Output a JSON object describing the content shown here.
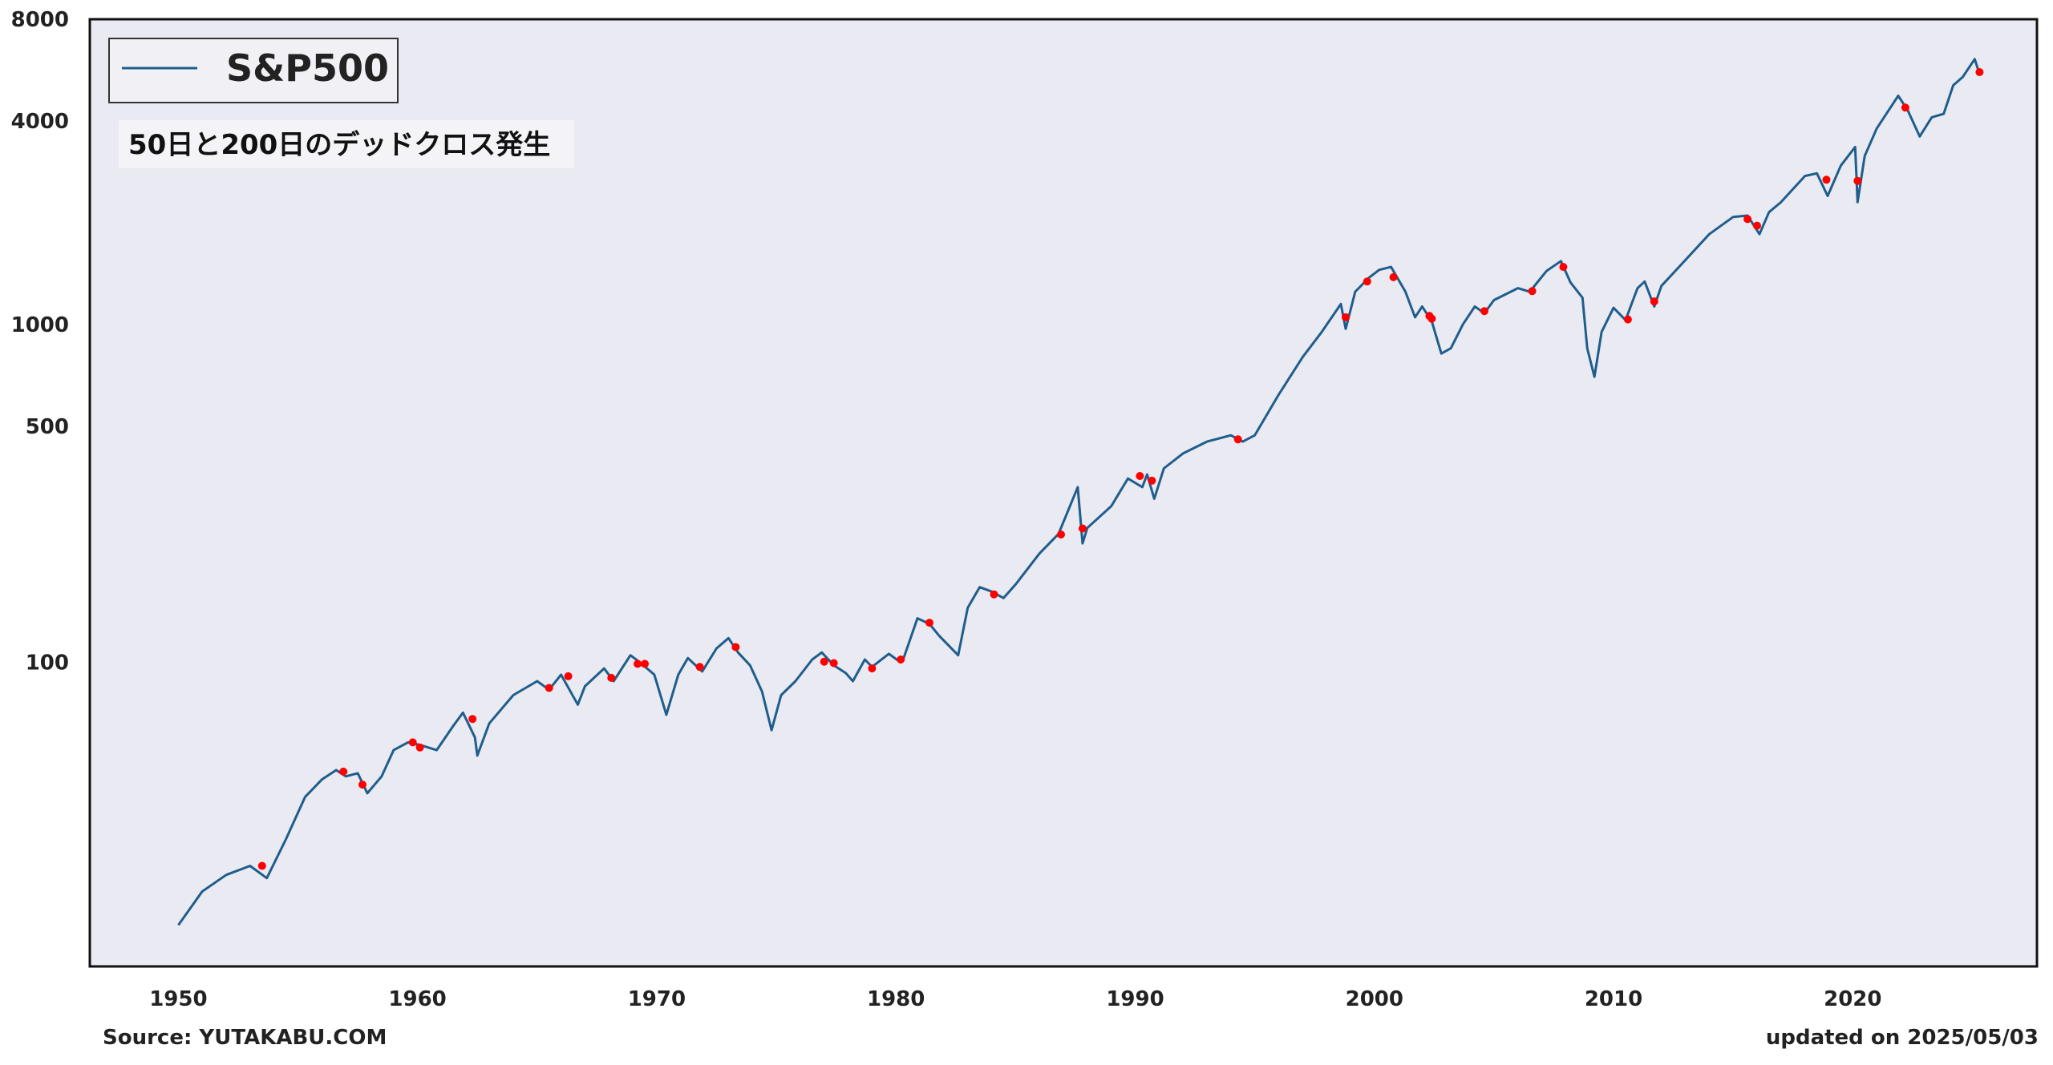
{
  "colors": {
    "plot_background": "#eaeaf2",
    "line": "#1f5e8c",
    "dead_cross_marker": "#ff0000",
    "frame": "#111111"
  },
  "footer": {
    "source": "Source: YUTAKABU.COM",
    "updated": "updated on 2025/05/03"
  },
  "chart_data": {
    "type": "line",
    "title": "",
    "xlabel": "",
    "ylabel": "",
    "y_scale": "log",
    "xlim": [
      1946.3,
      2027.7
    ],
    "ylim": [
      12.6,
      8000
    ],
    "grid": false,
    "legend_position": "top-left",
    "x_ticks": [
      1950,
      1960,
      1970,
      1980,
      1990,
      2000,
      2010,
      2020
    ],
    "y_ticks": [
      100,
      500,
      1000,
      4000,
      8000
    ],
    "annotation": "50日と200日のデッドクロス発生",
    "series": [
      {
        "name": "S&P500",
        "style": "line",
        "points": [
          [
            1950.0,
            16.7
          ],
          [
            1951.0,
            21.0
          ],
          [
            1952.0,
            23.5
          ],
          [
            1953.0,
            25.0
          ],
          [
            1953.7,
            23.0
          ],
          [
            1954.5,
            30.0
          ],
          [
            1955.3,
            40.0
          ],
          [
            1956.0,
            45.0
          ],
          [
            1956.6,
            48.0
          ],
          [
            1957.0,
            46.0
          ],
          [
            1957.5,
            47.0
          ],
          [
            1957.9,
            41.0
          ],
          [
            1958.5,
            46.0
          ],
          [
            1959.0,
            55.0
          ],
          [
            1959.6,
            58.0
          ],
          [
            1960.1,
            57.0
          ],
          [
            1960.8,
            55.0
          ],
          [
            1961.5,
            65.0
          ],
          [
            1961.9,
            71.0
          ],
          [
            1962.4,
            60.0
          ],
          [
            1962.5,
            53.0
          ],
          [
            1963.0,
            66.0
          ],
          [
            1964.0,
            80.0
          ],
          [
            1965.0,
            88.0
          ],
          [
            1965.5,
            83.0
          ],
          [
            1966.0,
            92.0
          ],
          [
            1966.7,
            75.0
          ],
          [
            1967.0,
            85.0
          ],
          [
            1967.8,
            96.0
          ],
          [
            1968.2,
            88.0
          ],
          [
            1968.9,
            105.0
          ],
          [
            1969.3,
            100.0
          ],
          [
            1969.9,
            92.0
          ],
          [
            1970.4,
            70.0
          ],
          [
            1970.9,
            92.0
          ],
          [
            1971.3,
            103.0
          ],
          [
            1971.9,
            94.0
          ],
          [
            1972.5,
            110.0
          ],
          [
            1973.0,
            118.0
          ],
          [
            1973.4,
            107.0
          ],
          [
            1973.9,
            98.0
          ],
          [
            1974.4,
            82.0
          ],
          [
            1974.8,
            63.0
          ],
          [
            1975.2,
            80.0
          ],
          [
            1975.8,
            88.0
          ],
          [
            1976.5,
            102.0
          ],
          [
            1976.9,
            107.0
          ],
          [
            1977.4,
            98.0
          ],
          [
            1977.9,
            93.0
          ],
          [
            1978.2,
            88.0
          ],
          [
            1978.7,
            102.0
          ],
          [
            1979.0,
            97.0
          ],
          [
            1979.7,
            106.0
          ],
          [
            1980.2,
            100.0
          ],
          [
            1980.3,
            102.0
          ],
          [
            1980.9,
            135.0
          ],
          [
            1981.4,
            130.0
          ],
          [
            1981.8,
            120.0
          ],
          [
            1982.6,
            105.0
          ],
          [
            1983.0,
            145.0
          ],
          [
            1983.5,
            167.0
          ],
          [
            1984.0,
            162.0
          ],
          [
            1984.5,
            155.0
          ],
          [
            1985.0,
            170.0
          ],
          [
            1986.0,
            210.0
          ],
          [
            1986.8,
            240.0
          ],
          [
            1987.6,
            330.0
          ],
          [
            1987.8,
            225.0
          ],
          [
            1988.0,
            250.0
          ],
          [
            1989.0,
            290.0
          ],
          [
            1989.7,
            350.0
          ],
          [
            1990.3,
            330.0
          ],
          [
            1990.5,
            360.0
          ],
          [
            1990.8,
            305.0
          ],
          [
            1991.2,
            375.0
          ],
          [
            1992.0,
            415.0
          ],
          [
            1993.0,
            450.0
          ],
          [
            1994.0,
            470.0
          ],
          [
            1994.5,
            450.0
          ],
          [
            1995.0,
            470.0
          ],
          [
            1996.0,
            620.0
          ],
          [
            1997.0,
            800.0
          ],
          [
            1997.8,
            950.0
          ],
          [
            1998.6,
            1150.0
          ],
          [
            1998.8,
            970.0
          ],
          [
            1999.2,
            1250.0
          ],
          [
            1999.8,
            1380.0
          ],
          [
            2000.2,
            1450.0
          ],
          [
            2000.7,
            1480.0
          ],
          [
            2001.3,
            1250.0
          ],
          [
            2001.7,
            1050.0
          ],
          [
            2002.0,
            1130.0
          ],
          [
            2002.4,
            1020.0
          ],
          [
            2002.8,
            820.0
          ],
          [
            2003.2,
            850.0
          ],
          [
            2003.7,
            1000.0
          ],
          [
            2004.2,
            1130.0
          ],
          [
            2004.6,
            1080.0
          ],
          [
            2005.0,
            1180.0
          ],
          [
            2006.0,
            1280.0
          ],
          [
            2006.5,
            1250.0
          ],
          [
            2007.2,
            1440.0
          ],
          [
            2007.8,
            1540.0
          ],
          [
            2008.2,
            1330.0
          ],
          [
            2008.7,
            1200.0
          ],
          [
            2008.9,
            850.0
          ],
          [
            2009.2,
            700.0
          ],
          [
            2009.5,
            950.0
          ],
          [
            2010.0,
            1120.0
          ],
          [
            2010.5,
            1030.0
          ],
          [
            2011.0,
            1280.0
          ],
          [
            2011.3,
            1340.0
          ],
          [
            2011.7,
            1130.0
          ],
          [
            2012.0,
            1300.0
          ],
          [
            2013.0,
            1550.0
          ],
          [
            2014.0,
            1850.0
          ],
          [
            2015.0,
            2080.0
          ],
          [
            2015.6,
            2100.0
          ],
          [
            2016.1,
            1850.0
          ],
          [
            2016.5,
            2150.0
          ],
          [
            2017.0,
            2300.0
          ],
          [
            2018.0,
            2750.0
          ],
          [
            2018.5,
            2800.0
          ],
          [
            2018.95,
            2400.0
          ],
          [
            2019.5,
            2950.0
          ],
          [
            2020.1,
            3350.0
          ],
          [
            2020.2,
            2300.0
          ],
          [
            2020.5,
            3150.0
          ],
          [
            2021.0,
            3800.0
          ],
          [
            2021.9,
            4750.0
          ],
          [
            2022.3,
            4300.0
          ],
          [
            2022.8,
            3600.0
          ],
          [
            2023.3,
            4100.0
          ],
          [
            2023.8,
            4200.0
          ],
          [
            2024.2,
            5100.0
          ],
          [
            2024.6,
            5400.0
          ],
          [
            2025.1,
            6100.0
          ],
          [
            2025.3,
            5500.0
          ],
          [
            2025.34,
            5680.0
          ]
        ]
      }
    ],
    "dead_cross_markers": [
      [
        1953.5,
        25.0
      ],
      [
        1956.9,
        47.5
      ],
      [
        1957.7,
        43.5
      ],
      [
        1959.8,
        58.0
      ],
      [
        1960.1,
        56.0
      ],
      [
        1962.3,
        68.0
      ],
      [
        1965.5,
        84.0
      ],
      [
        1966.3,
        91.0
      ],
      [
        1968.1,
        90.0
      ],
      [
        1969.2,
        99.0
      ],
      [
        1969.5,
        99.0
      ],
      [
        1971.8,
        97.0
      ],
      [
        1973.3,
        111.0
      ],
      [
        1977.0,
        100.5
      ],
      [
        1977.4,
        99.5
      ],
      [
        1979.0,
        96.0
      ],
      [
        1980.2,
        102.0
      ],
      [
        1981.4,
        131.0
      ],
      [
        1984.1,
        159.0
      ],
      [
        1986.9,
        239.0
      ],
      [
        1987.8,
        249.0
      ],
      [
        1990.2,
        356.0
      ],
      [
        1990.7,
        345.0
      ],
      [
        1994.3,
        457.0
      ],
      [
        1998.8,
        1050.0
      ],
      [
        1999.7,
        1340.0
      ],
      [
        2000.8,
        1380.0
      ],
      [
        2002.3,
        1060.0
      ],
      [
        2002.4,
        1040.0
      ],
      [
        2004.6,
        1095.0
      ],
      [
        2006.6,
        1255.0
      ],
      [
        2007.9,
        1480.0
      ],
      [
        2010.6,
        1035.0
      ],
      [
        2011.7,
        1170.0
      ],
      [
        2015.6,
        2050.0
      ],
      [
        2016.0,
        1960.0
      ],
      [
        2018.9,
        2680.0
      ],
      [
        2020.2,
        2660.0
      ],
      [
        2022.2,
        4380.0
      ],
      [
        2025.3,
        5580.0
      ]
    ]
  }
}
